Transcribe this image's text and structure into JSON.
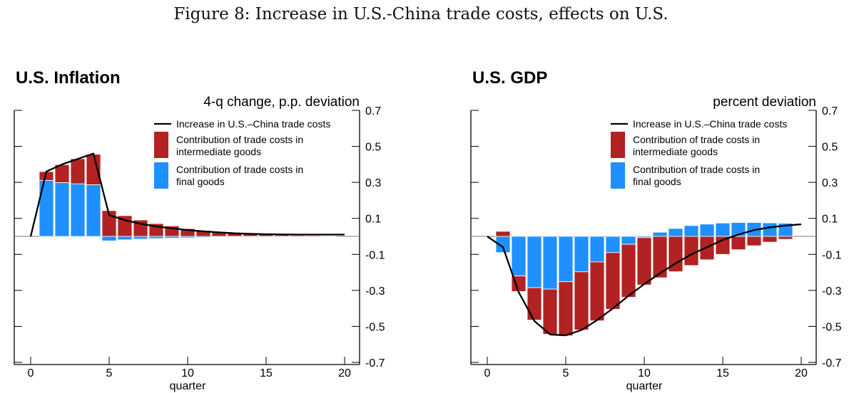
{
  "figure_title": "Figure 8: Increase in U.S.-China trade costs, effects on U.S.",
  "colors": {
    "intermediate": "#b22222",
    "final": "#1e90ff",
    "line": "#000000",
    "zero": "#777777"
  },
  "chart_data": [
    {
      "type": "bar",
      "title": "U.S. Inflation",
      "subtitle": "4-q change, p.p. deviation",
      "xlabel": "quarter",
      "ylabel": "4-q change, p.p. deviation",
      "xlim": [
        0,
        20
      ],
      "ylim": [
        -0.7,
        0.7
      ],
      "xticks": [
        "0",
        "5",
        "10",
        "15",
        "20"
      ],
      "yticks": [
        "0.7",
        "0.5",
        "0.3",
        "0.1",
        "-0.1",
        "-0.3",
        "-0.5",
        "-0.7"
      ],
      "legend": {
        "placement": "top-right",
        "line": "Increase in U.S.–China trade costs",
        "intermediate": [
          "Contribution of trade costs in",
          "intermediate goods"
        ],
        "final": [
          "Contribution of trade costs in",
          "final goods"
        ]
      },
      "quarters": [
        1,
        2,
        3,
        4,
        5,
        6,
        7,
        8,
        9,
        10,
        11,
        12,
        13,
        14,
        15,
        16,
        17,
        18,
        19
      ],
      "series": [
        {
          "name": "Contribution of trade costs in final goods",
          "values": [
            0.311,
            0.299,
            0.292,
            0.287,
            -0.025,
            -0.019,
            -0.015,
            -0.012,
            -0.01,
            -0.008,
            -0.006,
            -0.004,
            -0.003,
            -0.002,
            -0.002,
            -0.001,
            -0.001,
            -0.001,
            -0.001
          ]
        },
        {
          "name": "Contribution of trade costs in intermediate goods",
          "values": [
            0.049,
            0.099,
            0.139,
            0.169,
            0.143,
            0.115,
            0.091,
            0.071,
            0.058,
            0.043,
            0.033,
            0.025,
            0.018,
            0.013,
            0.01,
            0.008,
            0.006,
            0.005,
            0.004
          ]
        }
      ],
      "line": {
        "name": "Increase in U.S.–China trade costs",
        "x": [
          0,
          1,
          2,
          3,
          4,
          5,
          6,
          7,
          8,
          9,
          10,
          11,
          12,
          13,
          14,
          15,
          16,
          17,
          18,
          19,
          20
        ],
        "values": [
          0,
          0.36,
          0.4,
          0.43,
          0.46,
          0.118,
          0.09,
          0.07,
          0.055,
          0.045,
          0.035,
          0.028,
          0.022,
          0.017,
          0.014,
          0.012,
          0.011,
          0.01,
          0.01,
          0.01,
          0.01
        ]
      }
    },
    {
      "type": "bar",
      "title": "U.S. GDP",
      "subtitle": "percent deviation",
      "xlabel": "quarter",
      "ylabel": "percent deviation",
      "xlim": [
        0,
        20
      ],
      "ylim": [
        -0.7,
        0.7
      ],
      "xticks": [
        "0",
        "5",
        "10",
        "15",
        "20"
      ],
      "yticks": [
        "0.7",
        "0.5",
        "0.3",
        "0.1",
        "-0.1",
        "-0.3",
        "-0.5",
        "-0.7"
      ],
      "legend": {
        "placement": "top-right",
        "line": "Increase in U.S.–China trade costs",
        "intermediate": [
          "Contribution of trade costs in",
          "intermediate goods"
        ],
        "final": [
          "Contribution of trade costs in",
          "final goods"
        ]
      },
      "quarters": [
        1,
        2,
        3,
        4,
        5,
        6,
        7,
        8,
        9,
        10,
        11,
        12,
        13,
        14,
        15,
        16,
        17,
        18,
        19
      ],
      "series": [
        {
          "name": "Contribution of trade costs in final goods",
          "values": [
            -0.09,
            -0.22,
            -0.285,
            -0.293,
            -0.252,
            -0.197,
            -0.142,
            -0.09,
            -0.044,
            -0.007,
            0.023,
            0.044,
            0.06,
            0.068,
            0.074,
            0.077,
            0.077,
            0.075,
            0.073
          ]
        },
        {
          "name": "Contribution of trade costs in intermediate goods",
          "values": [
            0.028,
            -0.086,
            -0.18,
            -0.251,
            -0.3,
            -0.323,
            -0.327,
            -0.315,
            -0.294,
            -0.263,
            -0.23,
            -0.196,
            -0.162,
            -0.13,
            -0.1,
            -0.074,
            -0.052,
            -0.032,
            -0.016
          ]
        }
      ],
      "line": {
        "name": "Increase in U.S.–China trade costs",
        "x": [
          0,
          1,
          2,
          3,
          4,
          5,
          6,
          7,
          8,
          9,
          10,
          11,
          12,
          13,
          14,
          15,
          16,
          17,
          18,
          19,
          20
        ],
        "values": [
          0,
          -0.06,
          -0.31,
          -0.47,
          -0.545,
          -0.55,
          -0.52,
          -0.465,
          -0.4,
          -0.33,
          -0.265,
          -0.205,
          -0.15,
          -0.1,
          -0.06,
          -0.02,
          0.01,
          0.035,
          0.05,
          0.06,
          0.067
        ]
      }
    }
  ]
}
